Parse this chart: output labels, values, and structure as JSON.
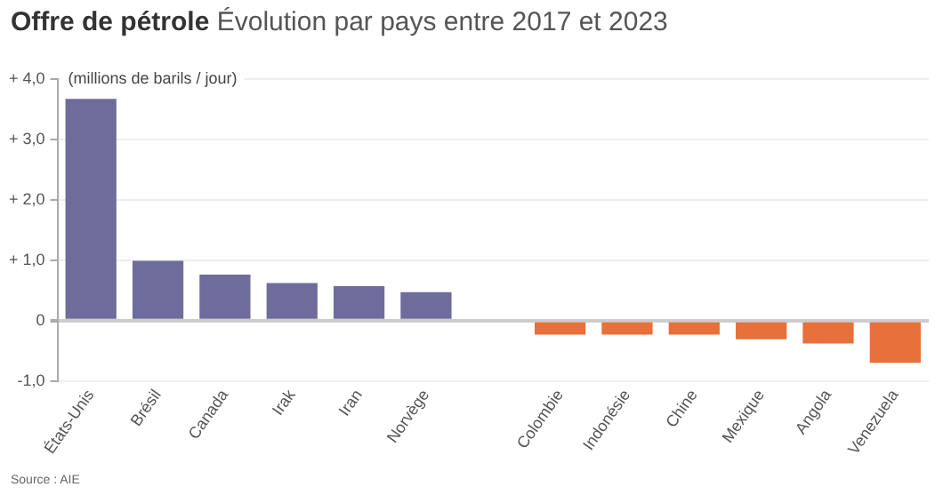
{
  "chart_data": {
    "type": "bar",
    "title": "Offre de pétrole",
    "subtitle": "Évolution par pays entre 2017 et 2023",
    "ylabel": "(millions de barils / jour)",
    "categories": [
      "États-Unis",
      "Brésil",
      "Canada",
      "Irak",
      "Iran",
      "Norvège",
      null,
      "Colombie",
      "Indonésie",
      "Chine",
      "Mexique",
      "Angola",
      "Venezuela"
    ],
    "values": [
      3.67,
      0.99,
      0.76,
      0.62,
      0.57,
      0.47,
      null,
      -0.23,
      -0.23,
      -0.23,
      -0.31,
      -0.38,
      -0.7
    ],
    "colors": [
      "#6f6c9c",
      "#6f6c9c",
      "#6f6c9c",
      "#6f6c9c",
      "#6f6c9c",
      "#6f6c9c",
      "#6f6c9c",
      "#e8703a",
      "#e8703a",
      "#e8703a",
      "#e8703a",
      "#e8703a",
      "#e8703a"
    ],
    "ylim": [
      -1,
      4
    ],
    "yticks": [
      {
        "value": -1,
        "label": "-1,0"
      },
      0,
      {
        "value": 1,
        "label": "+ 1,0"
      },
      {
        "value": 2,
        "label": "+ 2,0"
      },
      {
        "value": 3,
        "label": "+ 3,0"
      },
      {
        "value": 4,
        "label": "+ 4,0"
      }
    ],
    "grid": "y",
    "legend": false,
    "annotations": [
      "Source : AIE"
    ]
  }
}
